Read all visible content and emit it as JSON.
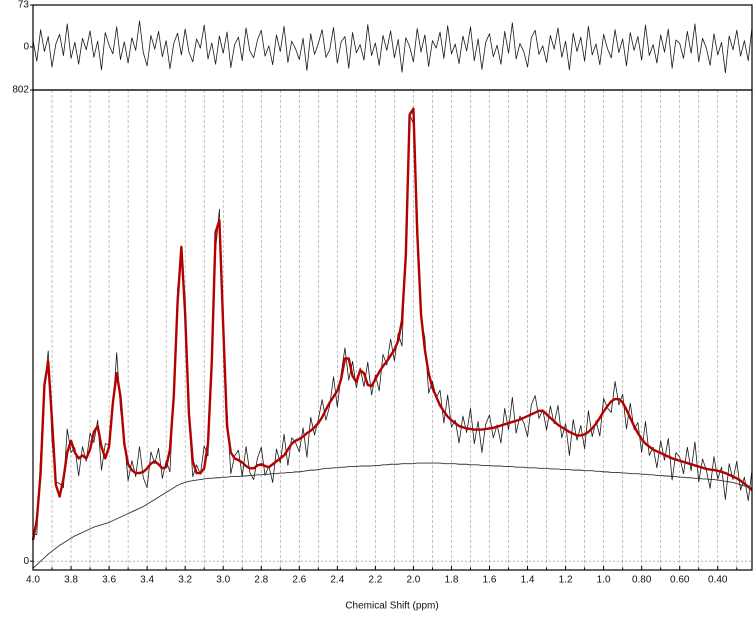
{
  "chart_data": [
    {
      "type": "line",
      "x": [
        4,
        3.98,
        3.96,
        3.94,
        3.92,
        3.9,
        3.88,
        3.86,
        3.84,
        3.82,
        3.8,
        3.78,
        3.76,
        3.74,
        3.72,
        3.7,
        3.68,
        3.66,
        3.64,
        3.62,
        3.6,
        3.58,
        3.56,
        3.54,
        3.52,
        3.5,
        3.48,
        3.46,
        3.44,
        3.42,
        3.4,
        3.38,
        3.36,
        3.34,
        3.32,
        3.3,
        3.28,
        3.26,
        3.24,
        3.22,
        3.2,
        3.18,
        3.16,
        3.14,
        3.12,
        3.1,
        3.08,
        3.06,
        3.04,
        3.02,
        3,
        2.98,
        2.96,
        2.94,
        2.92,
        2.9,
        2.88,
        2.86,
        2.84,
        2.82,
        2.8,
        2.78,
        2.76,
        2.74,
        2.72,
        2.7,
        2.68,
        2.66,
        2.64,
        2.62,
        2.6,
        2.58,
        2.56,
        2.54,
        2.52,
        2.5,
        2.48,
        2.46,
        2.44,
        2.42,
        2.4,
        2.38,
        2.36,
        2.34,
        2.32,
        2.3,
        2.28,
        2.26,
        2.24,
        2.22,
        2.2,
        2.18,
        2.16,
        2.14,
        2.12,
        2.1,
        2.08,
        2.06,
        2.04,
        2.02,
        2,
        1.98,
        1.96,
        1.94,
        1.92,
        1.9,
        1.88,
        1.86,
        1.84,
        1.82,
        1.8,
        1.78,
        1.76,
        1.74,
        1.72,
        1.7,
        1.68,
        1.66,
        1.64,
        1.62,
        1.6,
        1.58,
        1.56,
        1.54,
        1.52,
        1.5,
        1.48,
        1.46,
        1.44,
        1.42,
        1.4,
        1.38,
        1.36,
        1.34,
        1.32,
        1.3,
        1.28,
        1.26,
        1.24,
        1.22,
        1.2,
        1.18,
        1.16,
        1.14,
        1.12,
        1.1,
        1.08,
        1.06,
        1.04,
        1.02,
        1,
        0.98,
        0.96,
        0.94,
        0.92,
        0.9,
        0.88,
        0.86,
        0.84,
        0.82,
        0.8,
        0.78,
        0.76,
        0.74,
        0.72,
        0.7,
        0.68,
        0.66,
        0.64,
        0.62,
        0.6,
        0.58,
        0.56,
        0.54,
        0.52,
        0.5,
        0.48,
        0.46,
        0.44,
        0.42,
        0.4,
        0.38,
        0.36,
        0.34,
        0.32,
        0.3,
        0.28,
        0.26,
        0.24,
        0.22
      ],
      "series": [
        {
          "color": "#1a1a1a",
          "values": [
            12,
            -25,
            30,
            -8,
            18,
            -35,
            5,
            22,
            -15,
            40,
            -20,
            8,
            -30,
            15,
            -5,
            28,
            -18,
            10,
            -40,
            25,
            3,
            -12,
            35,
            -22,
            9,
            -28,
            16,
            -6,
            45,
            -10,
            -33,
            20,
            -4,
            27,
            -17,
            11,
            -38,
            6,
            24,
            -14,
            31,
            -9,
            -26,
            14,
            -2,
            38,
            -21,
            7,
            -30,
            19,
            -11,
            26,
            -36,
            4,
            17,
            -24,
            33,
            -7,
            -19,
            12,
            29,
            -16,
            2,
            -31,
            21,
            -8,
            36,
            -27,
            10,
            -3,
            -22,
            15,
            -41,
            23,
            -13,
            6,
            30,
            -18,
            -5,
            34,
            -28,
            9,
            18,
            -37,
            25,
            -10,
            4,
            -23,
            39,
            -15,
            7,
            -32,
            20,
            -6,
            28,
            -19,
            13,
            -44,
            16,
            1,
            -26,
            32,
            -9,
            21,
            -34,
            11,
            -2,
            26,
            -20,
            37,
            -12,
            5,
            -29,
            19,
            -7,
            35,
            -24,
            14,
            -39,
            8,
            23,
            -17,
            3,
            -30,
            27,
            -11,
            42,
            -21,
            6,
            -8,
            -35,
            16,
            29,
            -13,
            2,
            -27,
            20,
            -4,
            33,
            -18,
            10,
            -40,
            24,
            -8,
            17,
            -25,
            36,
            -14,
            5,
            -31,
            22,
            -3,
            -19,
            30,
            -10,
            14,
            -33,
            25,
            -6,
            18,
            -23,
            38,
            -15,
            4,
            -28,
            21,
            -9,
            31,
            -37,
            12,
            6,
            -20,
            27,
            -11,
            40,
            -26,
            15,
            -2,
            -32,
            23,
            -14,
            8,
            -45,
            19,
            -5,
            29,
            -16,
            11,
            -24,
            34
          ]
        }
      ],
      "xlim": [
        4,
        0.22
      ],
      "ylim": [
        -75,
        73
      ],
      "yticks": [
        0,
        73
      ]
    },
    {
      "type": "line",
      "x": [
        4,
        3.98,
        3.96,
        3.94,
        3.92,
        3.9,
        3.88,
        3.86,
        3.84,
        3.82,
        3.8,
        3.78,
        3.76,
        3.74,
        3.72,
        3.7,
        3.68,
        3.66,
        3.64,
        3.62,
        3.6,
        3.58,
        3.56,
        3.54,
        3.52,
        3.5,
        3.48,
        3.46,
        3.44,
        3.42,
        3.4,
        3.38,
        3.36,
        3.34,
        3.32,
        3.3,
        3.28,
        3.26,
        3.24,
        3.22,
        3.2,
        3.18,
        3.16,
        3.14,
        3.12,
        3.1,
        3.08,
        3.06,
        3.04,
        3.02,
        3,
        2.98,
        2.96,
        2.94,
        2.92,
        2.9,
        2.88,
        2.86,
        2.84,
        2.82,
        2.8,
        2.78,
        2.76,
        2.74,
        2.72,
        2.7,
        2.68,
        2.66,
        2.64,
        2.62,
        2.6,
        2.58,
        2.56,
        2.54,
        2.52,
        2.5,
        2.48,
        2.46,
        2.44,
        2.42,
        2.4,
        2.38,
        2.36,
        2.34,
        2.32,
        2.3,
        2.28,
        2.26,
        2.24,
        2.22,
        2.2,
        2.18,
        2.16,
        2.14,
        2.12,
        2.1,
        2.08,
        2.06,
        2.04,
        2.02,
        2,
        1.98,
        1.96,
        1.94,
        1.92,
        1.9,
        1.88,
        1.86,
        1.84,
        1.82,
        1.8,
        1.78,
        1.76,
        1.74,
        1.72,
        1.7,
        1.68,
        1.66,
        1.64,
        1.62,
        1.6,
        1.58,
        1.56,
        1.54,
        1.52,
        1.5,
        1.48,
        1.46,
        1.44,
        1.42,
        1.4,
        1.38,
        1.36,
        1.34,
        1.32,
        1.3,
        1.28,
        1.26,
        1.24,
        1.22,
        1.2,
        1.18,
        1.16,
        1.14,
        1.12,
        1.1,
        1.08,
        1.06,
        1.04,
        1.02,
        1,
        0.98,
        0.96,
        0.94,
        0.92,
        0.9,
        0.88,
        0.86,
        0.84,
        0.82,
        0.8,
        0.78,
        0.76,
        0.74,
        0.72,
        0.7,
        0.68,
        0.66,
        0.64,
        0.62,
        0.6,
        0.58,
        0.56,
        0.54,
        0.52,
        0.5,
        0.48,
        0.46,
        0.44,
        0.42,
        0.4,
        0.38,
        0.36,
        0.34,
        0.32,
        0.3,
        0.28,
        0.26,
        0.24,
        0.22
      ],
      "series": [
        {
          "color": "#1a1a1a",
          "values": [
            48,
            45,
            180,
            292,
            358,
            205,
            135,
            132,
            125,
            225,
            185,
            193,
            145,
            195,
            170,
            218,
            202,
            240,
            155,
            200,
            198,
            258,
            355,
            258,
            209,
            137,
            171,
            144,
            195,
            142,
            125,
            186,
            166,
            192,
            141,
            171,
            152,
            286,
            464,
            521,
            451,
            241,
            144,
            164,
            148,
            196,
            179,
            347,
            530,
            599,
            389,
            256,
            149,
            179,
            189,
            144,
            195,
            151,
            139,
            175,
            194,
            146,
            162,
            134,
            191,
            167,
            216,
            163,
            210,
            202,
            186,
            227,
            177,
            245,
            215,
            241,
            275,
            240,
            265,
            314,
            262,
            319,
            363,
            308,
            340,
            295,
            329,
            297,
            339,
            283,
            317,
            290,
            352,
            334,
            378,
            341,
            388,
            366,
            536,
            761,
            744,
            592,
            411,
            381,
            286,
            306,
            278,
            291,
            235,
            283,
            228,
            240,
            201,
            247,
            219,
            260,
            200,
            238,
            185,
            233,
            249,
            210,
            232,
            201,
            260,
            224,
            279,
            218,
            247,
            236,
            212,
            266,
            282,
            243,
            258,
            223,
            264,
            234,
            265,
            210,
            234,
            180,
            241,
            206,
            231,
            191,
            256,
            212,
            239,
            213,
            277,
            261,
            253,
            306,
            266,
            284,
            225,
            269,
            224,
            236,
            185,
            238,
            180,
            194,
            159,
            205,
            172,
            209,
            138,
            185,
            177,
            149,
            194,
            154,
            203,
            135,
            174,
            155,
            124,
            178,
            140,
            160,
            105,
            166,
            139,
            170,
            121,
            143,
            103,
            155
          ]
        },
        {
          "color": "#b30000",
          "values": [
            36,
            70,
            150,
            300,
            340,
            240,
            130,
            110,
            140,
            185,
            205,
            185,
            175,
            180,
            175,
            190,
            220,
            230,
            195,
            175,
            195,
            270,
            320,
            280,
            200,
            165,
            155,
            150,
            150,
            152,
            158,
            166,
            170,
            165,
            158,
            160,
            190,
            280,
            440,
            535,
            420,
            250,
            170,
            150,
            150,
            158,
            200,
            340,
            560,
            580,
            400,
            230,
            185,
            175,
            172,
            168,
            162,
            158,
            158,
            163,
            165,
            162,
            160,
            165,
            170,
            175,
            180,
            190,
            200,
            205,
            208,
            212,
            218,
            222,
            228,
            235,
            245,
            258,
            270,
            280,
            290,
            310,
            345,
            345,
            315,
            305,
            325,
            320,
            300,
            298,
            310,
            322,
            332,
            340,
            350,
            360,
            375,
            410,
            520,
            760,
            770,
            560,
            420,
            360,
            320,
            295,
            280,
            265,
            255,
            246,
            240,
            235,
            230,
            228,
            226,
            225,
            224,
            224,
            224,
            225,
            226,
            227,
            229,
            231,
            233,
            235,
            237,
            239,
            241,
            244,
            247,
            250,
            253,
            256,
            256,
            250,
            244,
            238,
            232,
            228,
            224,
            220,
            217,
            214,
            214,
            216,
            220,
            226,
            234,
            244,
            255,
            264,
            272,
            276,
            276,
            270,
            258,
            244,
            230,
            218,
            208,
            200,
            195,
            190,
            187,
            184,
            181,
            178,
            175,
            173,
            171,
            169,
            167,
            165,
            163,
            161,
            159,
            157,
            156,
            155,
            154,
            152,
            150,
            147,
            144,
            141,
            137,
            132,
            127,
            121
          ]
        },
        {
          "color": "#333333",
          "values": [
            -12,
            -6,
            0,
            6,
            12,
            17,
            22,
            27,
            31,
            35,
            39,
            43,
            46,
            49,
            52,
            55,
            58,
            60,
            62,
            64,
            66,
            69,
            72,
            75,
            78,
            81,
            84,
            87,
            90,
            93,
            97,
            101,
            105,
            109,
            113,
            117,
            121,
            125,
            129,
            132,
            134,
            136,
            137,
            138,
            139,
            140,
            141,
            141,
            142,
            142,
            143,
            143,
            144,
            144,
            144,
            145,
            145,
            146,
            146,
            147,
            147,
            148,
            148,
            149,
            149,
            150,
            150,
            151,
            151,
            152,
            152,
            153,
            154,
            155,
            155,
            156,
            157,
            158,
            158,
            159,
            159,
            160,
            160,
            161,
            161,
            161,
            162,
            162,
            162,
            162,
            163,
            163,
            164,
            164,
            165,
            165,
            165,
            166,
            166,
            166,
            166,
            167,
            167,
            167,
            167,
            167,
            167,
            167,
            166,
            166,
            166,
            166,
            165,
            165,
            165,
            164,
            164,
            164,
            163,
            163,
            163,
            162,
            162,
            162,
            161,
            161,
            161,
            160,
            160,
            160,
            159,
            159,
            159,
            158,
            158,
            158,
            157,
            157,
            157,
            156,
            156,
            156,
            155,
            155,
            155,
            154,
            154,
            154,
            153,
            153,
            152,
            152,
            151,
            151,
            151,
            150,
            150,
            149,
            149,
            149,
            148,
            148,
            147,
            147,
            146,
            146,
            145,
            145,
            144,
            144,
            143,
            143,
            142,
            142,
            141,
            141,
            140,
            140,
            139,
            139,
            138,
            137,
            136,
            135,
            134,
            132,
            130,
            128,
            126,
            124
          ]
        }
      ],
      "xlim": [
        4,
        0.22
      ],
      "ylim": [
        -15,
        802
      ],
      "yticks": [
        0,
        802
      ],
      "xticks": [
        {
          "value": 4,
          "label": "4.0"
        },
        3.8,
        3.6,
        3.4,
        3.2,
        {
          "value": 3,
          "label": "3.0"
        },
        2.8,
        2.6,
        2.4,
        2.2,
        {
          "value": 2,
          "label": "2.0"
        },
        1.8,
        1.6,
        1.4,
        1.2,
        {
          "value": 1,
          "label": "1.0"
        },
        {
          "value": 0.8,
          "label": "0.80"
        },
        {
          "value": 0.6,
          "label": "0.60"
        },
        {
          "value": 0.4,
          "label": "0.40"
        }
      ],
      "xminor": [
        3.9,
        3.7,
        3.5,
        3.3,
        3.1,
        2.9,
        2.7,
        2.5,
        2.3,
        2.1,
        1.9,
        1.7,
        1.5,
        1.3,
        1.1,
        0.9,
        0.7,
        0.5,
        0.3
      ],
      "xlabel": "Chemical Shift (ppm)",
      "grid": true
    }
  ]
}
